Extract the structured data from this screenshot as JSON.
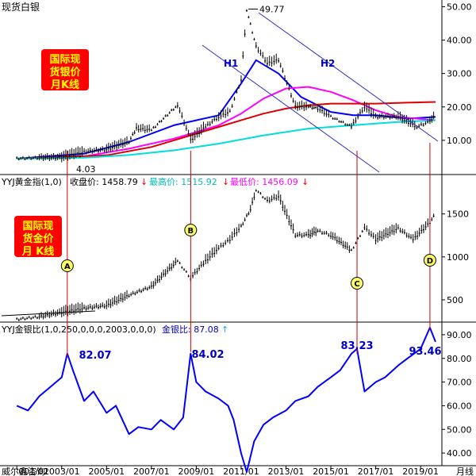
{
  "silver_panel": {
    "title": "现货白银",
    "badge_lines": [
      "国际现",
      "货银价",
      "月K线"
    ],
    "y_ticks": [
      50,
      40,
      30,
      20,
      10
    ],
    "y_tick_labels": [
      "50.00",
      "40.00",
      "30.00",
      "20.00",
      "10.00"
    ],
    "high_label": "49.77",
    "low_label": "4.03",
    "channel_labels": [
      "H1",
      "H2"
    ]
  },
  "gold_panel": {
    "header_name": "YYJ黄金指(1,0)",
    "close_text": "收盘价: 1458.79",
    "high_text": "最高价: 1515.92",
    "low_text": "最低价: 1456.09",
    "badge_lines": [
      "国际现",
      "货金价",
      "月 K线"
    ],
    "y_ticks": [
      1500,
      1000,
      500
    ],
    "y_tick_labels": [
      "1500",
      "1000",
      "500"
    ],
    "markers": [
      "A",
      "B",
      "C",
      "D"
    ]
  },
  "ratio_panel": {
    "header_name": "YYJ金银比(1,0,250,0,0,0,2003,0,0,0)",
    "ratio_text": "金银比: 87.08",
    "y_ticks": [
      90,
      80,
      70,
      60,
      50,
      40
    ],
    "y_tick_labels": [
      "90.00",
      "80.00",
      "70.00",
      "60.00",
      "50.00",
      "40.00"
    ],
    "peak_labels": [
      "82.07",
      "84.02",
      "83.23",
      "93.46"
    ]
  },
  "x_axis": {
    "watermark": "威尔鑫咨询",
    "tick_labels": [
      "001/01",
      "2003/01",
      "2005/01",
      "2007/01",
      "2009/01",
      "2011/01",
      "2013/01",
      "2015/01",
      "2017/01",
      "2019/01"
    ],
    "period_label": "月线"
  },
  "colors": {
    "axis_text": "#000000",
    "title_blue": "#0000cc",
    "badge_red": "#ff0000",
    "badge_yellow": "#ffff00",
    "ma_blue": "#0000ff",
    "ma_magenta": "#ff00ff",
    "ma_red": "#dd0000",
    "ma_cyan": "#00dddd",
    "guide_red": "#cc0000",
    "marker_fill": "#ffff66"
  },
  "chart_data": [
    {
      "type": "candlestick",
      "series": [
        {
          "name": "现货白银",
          "kind": "price",
          "x": [
            "2001/01",
            "2002/01",
            "2003/01",
            "2004/01",
            "2005/01",
            "2006/01",
            "2006/05",
            "2007/01",
            "2008/03",
            "2008/10",
            "2009/06",
            "2010/01",
            "2010/07",
            "2011/01",
            "2011/04",
            "2011/09",
            "2012/03",
            "2012/09",
            "2013/06",
            "2014/01",
            "2014/06",
            "2015/01",
            "2015/12",
            "2016/07",
            "2017/01",
            "2018/01",
            "2018/11",
            "2019/06",
            "2019/09"
          ],
          "values": [
            4.5,
            4.7,
            4.8,
            6.5,
            7.2,
            9.5,
            13.5,
            13.0,
            20.5,
            10.0,
            14.0,
            17.0,
            18.5,
            28.0,
            49.0,
            38.0,
            33.0,
            34.0,
            20.0,
            20.0,
            19.5,
            17.0,
            14.0,
            20.0,
            17.0,
            17.0,
            14.0,
            15.5,
            18.0
          ]
        },
        {
          "name": "",
          "kind": "ma",
          "color": "ma_blue",
          "x": [
            "2001/01",
            "2004/01",
            "2006/01",
            "2008/01",
            "2009/01",
            "2010/01",
            "2011/01",
            "2011/09",
            "2012/09",
            "2013/09",
            "2015/01",
            "2016/01",
            "2017/01",
            "2018/06",
            "2019/09"
          ],
          "values": [
            4.5,
            6.0,
            9.5,
            14.5,
            16.0,
            17.5,
            27.0,
            34.0,
            30.0,
            23.0,
            18.5,
            17.5,
            17.5,
            16.5,
            17.0
          ]
        },
        {
          "name": "",
          "kind": "ma",
          "color": "ma_magenta",
          "x": [
            "2001/01",
            "2004/01",
            "2006/01",
            "2008/01",
            "2009/01",
            "2010/01",
            "2011/01",
            "2012/01",
            "2013/01",
            "2014/01",
            "2015/01",
            "2016/01",
            "2017/01",
            "2018/01",
            "2019/09"
          ],
          "values": [
            4.5,
            5.2,
            7.5,
            10.5,
            12.5,
            14.5,
            18.0,
            22.5,
            25.5,
            26.0,
            24.5,
            22.0,
            19.0,
            17.0,
            16.0
          ]
        },
        {
          "name": "",
          "kind": "ma",
          "color": "ma_red",
          "x": [
            "2001/01",
            "2005/01",
            "2007/01",
            "2008/01",
            "2009/01",
            "2010/01",
            "2011/01",
            "2012/01",
            "2013/01",
            "2014/01",
            "2015/01",
            "2016/01",
            "2017/01",
            "2018/01",
            "2019/09"
          ],
          "values": [
            4.5,
            5.5,
            8.0,
            10.0,
            12.0,
            14.0,
            16.0,
            18.0,
            19.5,
            20.5,
            21.0,
            21.0,
            21.0,
            21.2,
            21.5
          ]
        },
        {
          "name": "",
          "kind": "ma",
          "color": "ma_cyan",
          "x": [
            "2001/01",
            "2004/01",
            "2006/01",
            "2008/01",
            "2010/01",
            "2012/01",
            "2013/01",
            "2014/01",
            "2015/01",
            "2016/01",
            "2017/01",
            "2018/01",
            "2019/09"
          ],
          "values": [
            4.5,
            4.8,
            5.6,
            7.0,
            9.0,
            11.5,
            12.5,
            13.5,
            14.0,
            14.5,
            15.0,
            15.5,
            16.0
          ]
        }
      ],
      "ylim": [
        0,
        52
      ]
    },
    {
      "type": "candlestick",
      "series": [
        {
          "name": "YYJ黄金指(1,0)",
          "kind": "price",
          "x": [
            "2001/01",
            "2002/01",
            "2003/01",
            "2004/01",
            "2005/01",
            "2006/01",
            "2007/01",
            "2008/03",
            "2008/10",
            "2009/06",
            "2010/01",
            "2010/07",
            "2011/01",
            "2011/06",
            "2011/09",
            "2012/03",
            "2012/09",
            "2013/06",
            "2014/01",
            "2014/06",
            "2015/01",
            "2015/12",
            "2016/07",
            "2017/01",
            "2018/01",
            "2018/09",
            "2019/06",
            "2019/09"
          ],
          "values": [
            270,
            300,
            350,
            400,
            430,
            550,
            650,
            950,
            750,
            950,
            1100,
            1200,
            1350,
            1550,
            1780,
            1650,
            1700,
            1250,
            1250,
            1300,
            1250,
            1070,
            1340,
            1200,
            1330,
            1200,
            1400,
            1500
          ]
        }
      ],
      "ylim": [
        250,
        1950
      ]
    },
    {
      "type": "line",
      "series": [
        {
          "name": "YYJ金银比(1,0,250,0,0,0,2003,0,0,0)",
          "x": [
            "2001/01",
            "2001/07",
            "2002/01",
            "2002/07",
            "2003/01",
            "2003/04",
            "2003/07",
            "2004/01",
            "2004/06",
            "2005/01",
            "2005/06",
            "2006/01",
            "2006/06",
            "2007/01",
            "2007/06",
            "2008/01",
            "2008/06",
            "2008/10",
            "2009/01",
            "2009/06",
            "2010/01",
            "2010/06",
            "2010/09",
            "2011/01",
            "2011/04",
            "2011/08",
            "2012/01",
            "2012/06",
            "2013/01",
            "2013/06",
            "2014/01",
            "2014/06",
            "2015/01",
            "2015/06",
            "2015/12",
            "2016/03",
            "2016/07",
            "2017/01",
            "2017/06",
            "2018/01",
            "2018/06",
            "2019/01",
            "2019/06",
            "2019/09"
          ],
          "values": [
            60,
            58,
            64,
            68,
            72,
            82,
            75,
            62,
            66,
            57,
            60,
            48,
            51,
            50,
            54,
            50,
            55,
            82,
            70,
            66,
            63,
            60,
            54,
            40,
            32,
            45,
            52,
            55,
            58,
            62,
            64,
            68,
            72,
            75,
            82,
            84,
            66,
            70,
            72,
            77,
            80,
            84,
            93,
            87
          ]
        }
      ],
      "ylim": [
        35,
        95
      ]
    }
  ]
}
